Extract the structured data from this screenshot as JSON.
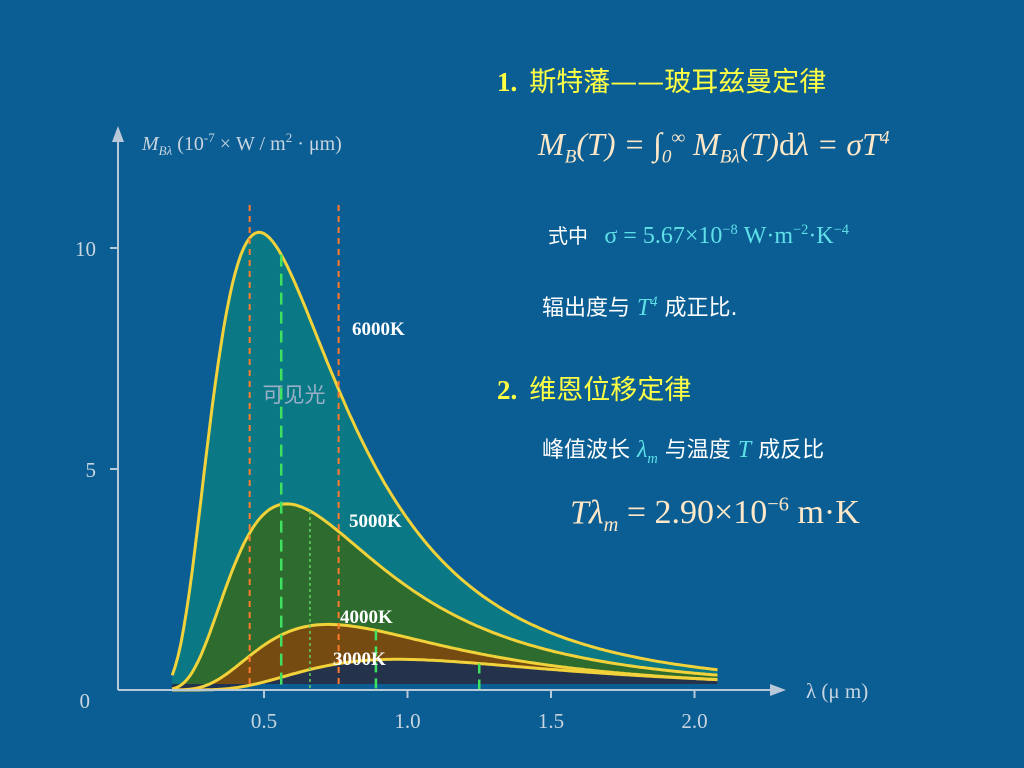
{
  "chart_data": {
    "type": "line",
    "ylabel": "M_Bλ (10^-7 × W / m^2 · μm)",
    "xlabel": "λ (μ m)",
    "xlim": [
      0.1,
      2.1
    ],
    "ylim": [
      0,
      12.3
    ],
    "x_ticks": [
      "0.5",
      "1.0",
      "1.5",
      "2.0"
    ],
    "y_ticks": [
      "0",
      "5",
      "10"
    ],
    "visible_band": [
      0.45,
      0.76
    ],
    "visible_label": "可见光",
    "series": [
      {
        "name": "6000K",
        "temperature": 6000,
        "peak_wavelength": 0.56,
        "peak_value": 9.85,
        "fill": "#0b7a84"
      },
      {
        "name": "5000K",
        "temperature": 5000,
        "peak_wavelength": 0.66,
        "peak_value": 4.05,
        "fill": "#2f6a2a"
      },
      {
        "name": "4000K",
        "temperature": 4000,
        "peak_wavelength": 0.89,
        "peak_value": 1.35,
        "fill": "#7a4a10"
      },
      {
        "name": "3000K",
        "temperature": 3000,
        "peak_wavelength": 1.25,
        "peak_value": 0.6,
        "fill": "#203050"
      }
    ]
  },
  "law1": {
    "number": "1.",
    "title": "斯特藩——玻耳兹曼定律",
    "formula": "M_B(T) = ∫₀^∞ M_Bλ(T) dλ = σT⁴",
    "constant_prefix": "式中",
    "constant": "σ = 5.67×10⁻⁸ W·m⁻²·K⁻⁴",
    "statement": "辐出度与 T⁴ 成正比."
  },
  "law2": {
    "number": "2.",
    "title": "维恩位移定律",
    "statement": "峰值波长 λm 与温度 T 成反比",
    "formula": "Tλm = 2.90×10⁻⁶ m·K"
  },
  "colors": {
    "background": "#0a5e93",
    "heading": "#ffff44",
    "curve": "#f2d23a",
    "axis": "#b8c8d8",
    "formula_cyan": "#5fe0e8"
  }
}
